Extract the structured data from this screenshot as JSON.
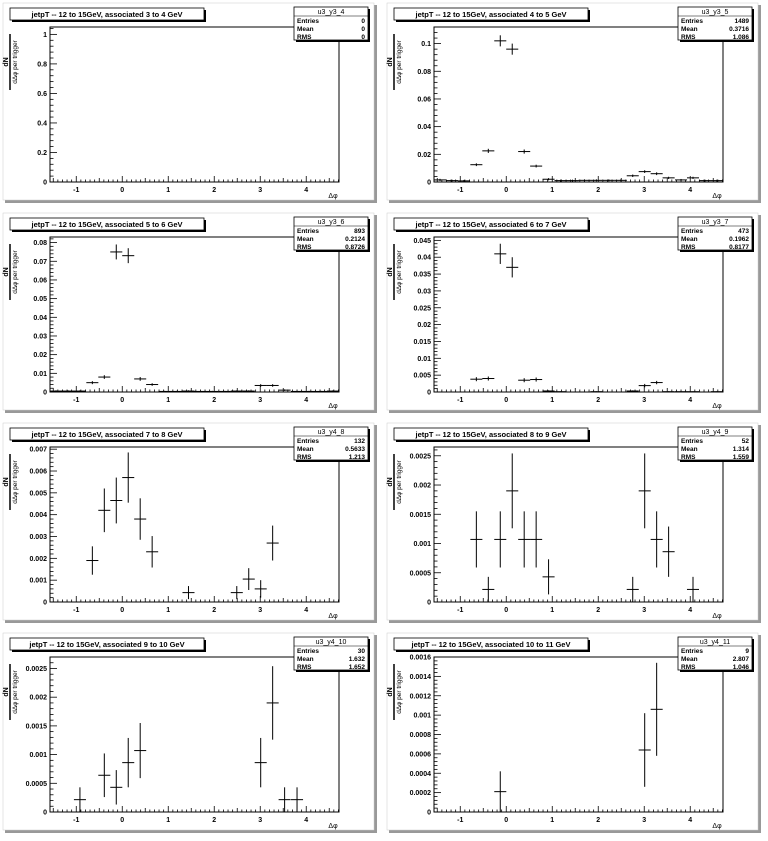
{
  "canvas": {
    "ylabel_num": "dN",
    "ylabel_den": "dΔφ per trigger",
    "xlabel": "Δφ",
    "stats_labels": [
      "Entries",
      "Mean",
      "RMS"
    ]
  },
  "chart_data": [
    {
      "type": "scatter",
      "title": "jetpT -- 12 to 15GeV, associated 3 to 4 GeV",
      "stats": {
        "name": "u3_y3_4",
        "entries": "0",
        "mean": "0",
        "rms": "0"
      },
      "xlim": [
        -1.5708,
        4.7124
      ],
      "ylim": [
        0,
        1.05
      ],
      "xticks": [
        "-1",
        "0",
        "1",
        "2",
        "3",
        "4"
      ],
      "yticks": [
        "0",
        "0.2",
        "0.4",
        "0.6",
        "0.8",
        "1"
      ],
      "points": []
    },
    {
      "type": "scatter",
      "title": "jetpT -- 12 to 15GeV, associated 4 to 5 GeV",
      "stats": {
        "name": "u3_y3_5",
        "entries": "1489",
        "mean": "0.3716",
        "rms": "1.086"
      },
      "xlim": [
        -1.5708,
        4.7124
      ],
      "ylim": [
        0,
        0.112
      ],
      "xticks": [
        "-1",
        "0",
        "1",
        "2",
        "3",
        "4"
      ],
      "yticks": [
        "0",
        "0.02",
        "0.04",
        "0.06",
        "0.08",
        "0.1"
      ],
      "points": [
        [
          -1.44,
          0.0015,
          0.0008
        ],
        [
          -1.18,
          0.001,
          0.0007
        ],
        [
          -0.92,
          0.0008,
          0.0007
        ],
        [
          -0.65,
          0.0125,
          0.001
        ],
        [
          -0.39,
          0.0225,
          0.0015
        ],
        [
          -0.13,
          0.102,
          0.004
        ],
        [
          0.13,
          0.096,
          0.004
        ],
        [
          0.39,
          0.022,
          0.0015
        ],
        [
          0.65,
          0.0115,
          0.001
        ],
        [
          0.92,
          0.002,
          0.0008
        ],
        [
          1.18,
          0.001,
          0.0007
        ],
        [
          1.44,
          0.001,
          0.0007
        ],
        [
          1.7,
          0.0012,
          0.0007
        ],
        [
          1.96,
          0.0012,
          0.0007
        ],
        [
          2.23,
          0.0012,
          0.0007
        ],
        [
          2.49,
          0.0012,
          0.0007
        ],
        [
          2.75,
          0.0045,
          0.0009
        ],
        [
          3.01,
          0.0075,
          0.001
        ],
        [
          3.27,
          0.006,
          0.001
        ],
        [
          3.53,
          0.003,
          0.0008
        ],
        [
          3.8,
          0.0015,
          0.0007
        ],
        [
          4.06,
          0.003,
          0.0008
        ],
        [
          4.32,
          0.001,
          0.0007
        ],
        [
          4.58,
          0.001,
          0.0007
        ]
      ]
    },
    {
      "type": "scatter",
      "title": "jetpT -- 12 to 15GeV, associated 5 to 6 GeV",
      "stats": {
        "name": "u3_y3_6",
        "entries": "893",
        "mean": "0.2124",
        "rms": "0.8726"
      },
      "xlim": [
        -1.5708,
        4.7124
      ],
      "ylim": [
        0,
        0.083
      ],
      "xticks": [
        "-1",
        "0",
        "1",
        "2",
        "3",
        "4"
      ],
      "yticks": [
        "0",
        "0.01",
        "0.02",
        "0.03",
        "0.04",
        "0.05",
        "0.06",
        "0.07",
        "0.08"
      ],
      "points": [
        [
          -1.44,
          0.0005,
          0.0004
        ],
        [
          -1.18,
          0.0005,
          0.0004
        ],
        [
          -0.92,
          0.0005,
          0.0004
        ],
        [
          -0.65,
          0.005,
          0.0008
        ],
        [
          -0.39,
          0.008,
          0.001
        ],
        [
          -0.13,
          0.075,
          0.004
        ],
        [
          0.13,
          0.073,
          0.004
        ],
        [
          0.39,
          0.007,
          0.001
        ],
        [
          0.65,
          0.004,
          0.0007
        ],
        [
          0.92,
          0.0003,
          0.0003
        ],
        [
          1.18,
          0.0003,
          0.0003
        ],
        [
          1.44,
          0.0005,
          0.0004
        ],
        [
          1.7,
          0.0003,
          0.0003
        ],
        [
          1.96,
          0.0003,
          0.0003
        ],
        [
          2.23,
          0.0003,
          0.0003
        ],
        [
          2.49,
          0.0005,
          0.0004
        ],
        [
          2.75,
          0.0005,
          0.0004
        ],
        [
          3.01,
          0.0035,
          0.0007
        ],
        [
          3.27,
          0.0035,
          0.0007
        ],
        [
          3.53,
          0.001,
          0.0004
        ],
        [
          3.8,
          0.0003,
          0.0003
        ],
        [
          4.06,
          0.0003,
          0.0003
        ],
        [
          4.32,
          0.0003,
          0.0003
        ],
        [
          4.58,
          0.0005,
          0.0004
        ]
      ]
    },
    {
      "type": "scatter",
      "title": "jetpT -- 12 to 15GeV, associated 6 to 7 GeV",
      "stats": {
        "name": "u3_y3_7",
        "entries": "473",
        "mean": "0.1962",
        "rms": "0.8177"
      },
      "xlim": [
        -1.5708,
        4.7124
      ],
      "ylim": [
        0,
        0.046
      ],
      "xticks": [
        "-1",
        "0",
        "1",
        "2",
        "3",
        "4"
      ],
      "yticks": [
        "0",
        "0.005",
        "0.01",
        "0.015",
        "0.02",
        "0.025",
        "0.03",
        "0.035",
        "0.04",
        "0.045"
      ],
      "points": [
        [
          -0.65,
          0.0038,
          0.0006
        ],
        [
          -0.39,
          0.004,
          0.0006
        ],
        [
          -0.13,
          0.041,
          0.003
        ],
        [
          0.13,
          0.037,
          0.003
        ],
        [
          0.39,
          0.0035,
          0.0006
        ],
        [
          0.65,
          0.0037,
          0.0006
        ],
        [
          0.92,
          0.0003,
          0.0002
        ],
        [
          1.18,
          0.0001,
          0.0001
        ],
        [
          1.96,
          0.0001,
          0.0001
        ],
        [
          2.75,
          0.0003,
          0.0002
        ],
        [
          3.01,
          0.0019,
          0.0005
        ],
        [
          3.27,
          0.0028,
          0.0005
        ],
        [
          3.53,
          0.0001,
          0.0001
        ],
        [
          3.8,
          0.0001,
          0.0001
        ],
        [
          4.06,
          0.0001,
          0.0001
        ],
        [
          4.58,
          0.0001,
          0.0001
        ]
      ]
    },
    {
      "type": "scatter",
      "title": "jetpT -- 12 to 15GeV, associated 7 to 8 GeV",
      "stats": {
        "name": "u3_y4_8",
        "entries": "132",
        "mean": "0.5633",
        "rms": "1.213"
      },
      "xlim": [
        -1.5708,
        4.7124
      ],
      "ylim": [
        0,
        0.0071
      ],
      "xticks": [
        "-1",
        "0",
        "1",
        "2",
        "3",
        "4"
      ],
      "yticks": [
        "0",
        "0.001",
        "0.002",
        "0.003",
        "0.004",
        "0.005",
        "0.006",
        "0.007"
      ],
      "points": [
        [
          -0.65,
          0.0019,
          0.00065
        ],
        [
          -0.39,
          0.0042,
          0.001
        ],
        [
          -0.13,
          0.00465,
          0.00105
        ],
        [
          0.13,
          0.0057,
          0.00115
        ],
        [
          0.39,
          0.0038,
          0.00095
        ],
        [
          0.65,
          0.0023,
          0.00072
        ],
        [
          1.44,
          0.00043,
          0.0003
        ],
        [
          2.49,
          0.00043,
          0.0003
        ],
        [
          2.75,
          0.00105,
          0.0005
        ],
        [
          3.01,
          0.0006,
          0.0004
        ],
        [
          3.27,
          0.0027,
          0.0008
        ]
      ]
    },
    {
      "type": "scatter",
      "title": "jetpT -- 12 to 15GeV, associated 8 to 9 GeV",
      "stats": {
        "name": "u3_y4_9",
        "entries": "52",
        "mean": "1.314",
        "rms": "1.559"
      },
      "xlim": [
        -1.5708,
        4.7124
      ],
      "ylim": [
        0,
        0.00265
      ],
      "xticks": [
        "-1",
        "0",
        "1",
        "2",
        "3",
        "4"
      ],
      "yticks": [
        "0",
        "0.0005",
        "0.001",
        "0.0015",
        "0.002",
        "0.0025"
      ],
      "points": [
        [
          -0.65,
          0.00107,
          0.00048
        ],
        [
          -0.39,
          0.000215,
          0.000215
        ],
        [
          -0.13,
          0.00107,
          0.00048
        ],
        [
          0.13,
          0.0019,
          0.00064
        ],
        [
          0.39,
          0.00107,
          0.00048
        ],
        [
          0.65,
          0.00107,
          0.00048
        ],
        [
          0.92,
          0.00043,
          0.0003
        ],
        [
          2.75,
          0.000215,
          0.000215
        ],
        [
          3.01,
          0.0019,
          0.00064
        ],
        [
          3.27,
          0.00107,
          0.00048
        ],
        [
          3.53,
          0.00086,
          0.00043
        ],
        [
          4.06,
          0.000215,
          0.000215
        ]
      ]
    },
    {
      "type": "scatter",
      "title": "jetpT -- 12 to 15GeV, associated 9 to 10 GeV",
      "stats": {
        "name": "u3_y4_10",
        "entries": "30",
        "mean": "1.632",
        "rms": "1.652"
      },
      "xlim": [
        -1.5708,
        4.7124
      ],
      "ylim": [
        0,
        0.0027
      ],
      "xticks": [
        "-1",
        "0",
        "1",
        "2",
        "3",
        "4"
      ],
      "yticks": [
        "0",
        "0.0005",
        "0.001",
        "0.0015",
        "0.002",
        "0.0025"
      ],
      "points": [
        [
          -0.92,
          0.000215,
          0.000215
        ],
        [
          -0.39,
          0.00064,
          0.00038
        ],
        [
          -0.13,
          0.00043,
          0.0003
        ],
        [
          0.13,
          0.00086,
          0.00043
        ],
        [
          0.39,
          0.00107,
          0.00048
        ],
        [
          3.01,
          0.00086,
          0.00043
        ],
        [
          3.27,
          0.0019,
          0.00064
        ],
        [
          3.53,
          0.000215,
          0.000215
        ],
        [
          3.8,
          0.000215,
          0.000215
        ]
      ]
    },
    {
      "type": "scatter",
      "title": "jetpT -- 12 to 15GeV, associated 10 to 11 GeV",
      "stats": {
        "name": "u3_y4_11",
        "entries": "9",
        "mean": "2.807",
        "rms": "1.046"
      },
      "xlim": [
        -1.5708,
        4.7124
      ],
      "ylim": [
        0,
        0.0016
      ],
      "xticks": [
        "-1",
        "0",
        "1",
        "2",
        "3",
        "4"
      ],
      "yticks": [
        "0",
        "0.0002",
        "0.0004",
        "0.0006",
        "0.0008",
        "0.001",
        "0.0012",
        "0.0014",
        "0.0016"
      ],
      "points": [
        [
          -0.13,
          0.00021,
          0.00021
        ],
        [
          3.01,
          0.00064,
          0.00038
        ],
        [
          3.27,
          0.00106,
          0.00048
        ]
      ]
    }
  ]
}
